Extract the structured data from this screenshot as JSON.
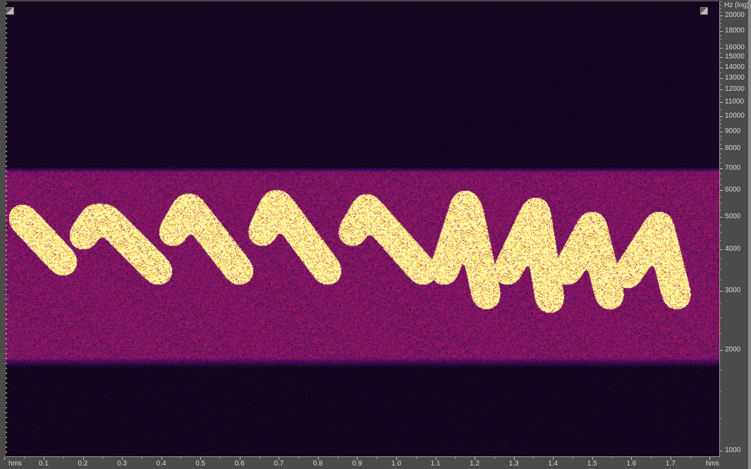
{
  "chart_data": {
    "type": "heatmap",
    "subtype": "spectrogram",
    "colormap": "inferno",
    "x_axis": {
      "unit_label_start": "hms",
      "unit_label_end": "hms",
      "range": [
        0,
        1.82
      ],
      "ticks": [
        0.1,
        0.2,
        0.3,
        0.4,
        0.5,
        0.6,
        0.7,
        0.8,
        0.9,
        1.0,
        1.1,
        1.2,
        1.3,
        1.4,
        1.5,
        1.6,
        1.7
      ],
      "tick_labels": [
        "0.1",
        "0.2",
        "0.3",
        "0.4",
        "0.5",
        "0.6",
        "0.7",
        "0.8",
        "0.9",
        "1.0",
        "1.1",
        "1.2",
        "1.3",
        "1.4",
        "1.5",
        "1.6",
        "1.7"
      ]
    },
    "y_axis": {
      "label": "Hz (log)",
      "scale": "log",
      "range": [
        950,
        22000
      ],
      "ticks": [
        20000,
        18000,
        16000,
        15000,
        14000,
        13000,
        12000,
        11000,
        10000,
        9000,
        8000,
        7000,
        6000,
        5000,
        4000,
        3000,
        2000,
        1000
      ],
      "tick_labels": [
        "20000",
        "18000",
        "16000",
        "15000",
        "14000",
        "13000",
        "12000",
        "11000",
        "10000",
        "9000",
        "8000",
        "7000",
        "6000",
        "5000",
        "4000",
        "3000",
        "2000",
        "1000"
      ]
    },
    "noise_band_hz": [
      1900,
      6800
    ],
    "syllables": [
      [
        [
          0.046,
          4950
        ],
        [
          0.15,
          3666
        ]
      ],
      [
        [
          0.201,
          4385
        ],
        [
          0.231,
          4950
        ],
        [
          0.258,
          4950
        ],
        [
          0.393,
          3442
        ]
      ],
      [
        [
          0.43,
          4494
        ],
        [
          0.466,
          5324
        ],
        [
          0.474,
          5324
        ],
        [
          0.6,
          3442
        ]
      ],
      [
        [
          0.658,
          4494
        ],
        [
          0.69,
          5457
        ],
        [
          0.699,
          5457
        ],
        [
          0.825,
          3442
        ]
      ],
      [
        [
          0.888,
          4494
        ],
        [
          0.924,
          5324
        ],
        [
          0.933,
          5197
        ],
        [
          1.068,
          3442
        ]
      ],
      [
        [
          1.122,
          3442
        ],
        [
          1.176,
          5457
        ],
        [
          1.185,
          5197
        ],
        [
          1.23,
          2905
        ]
      ],
      [
        [
          1.284,
          3442
        ],
        [
          1.356,
          5197
        ],
        [
          1.392,
          2835
        ]
      ],
      [
        [
          1.437,
          3442
        ],
        [
          1.5,
          4717
        ],
        [
          1.545,
          2905
        ]
      ],
      [
        [
          1.59,
          3359
        ],
        [
          1.671,
          4717
        ],
        [
          1.716,
          2905
        ]
      ]
    ]
  },
  "icons": {
    "top_left": "zoom-corner-icon",
    "top_right": "zoom-corner-icon"
  }
}
